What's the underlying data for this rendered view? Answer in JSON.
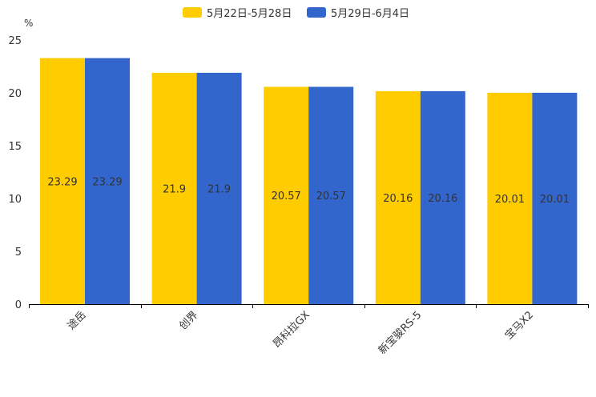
{
  "chart_data": {
    "type": "bar",
    "title": "",
    "ylabel": "%",
    "xlabel": "",
    "ylim": [
      0,
      25
    ],
    "yticks": [
      0,
      5,
      10,
      15,
      20,
      25
    ],
    "categories": [
      "途岳",
      "创界",
      "昂科拉GX",
      "新宝骏RS-5",
      "宝马X2"
    ],
    "series": [
      {
        "name": "5月22日-5月28日",
        "color": "#FFCC00",
        "values": [
          23.29,
          21.9,
          20.57,
          20.16,
          20.01
        ],
        "labels": [
          "23.29",
          "21.9",
          "20.57",
          "20.16",
          "20.01"
        ]
      },
      {
        "name": "5月29日-6月4日",
        "color": "#3366CC",
        "values": [
          23.29,
          21.9,
          20.57,
          20.16,
          20.01
        ],
        "labels": [
          "23.29",
          "21.9",
          "20.57",
          "20.16",
          "20.01"
        ]
      }
    ],
    "legend": "top-center",
    "grid": false
  }
}
